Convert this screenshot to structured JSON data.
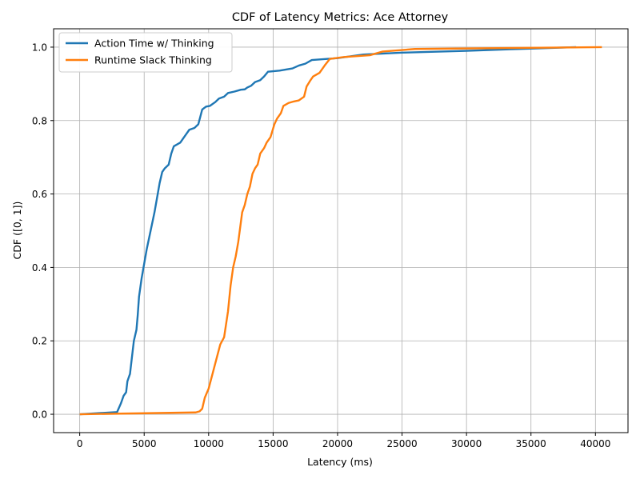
{
  "chart_data": {
    "type": "line",
    "title": "CDF of Latency Metrics: Ace Attorney",
    "xlabel": "Latency (ms)",
    "ylabel": "CDF ([0, 1])",
    "xlim": [
      -2025,
      42525
    ],
    "ylim": [
      -0.05,
      1.05
    ],
    "xticks": [
      0,
      5000,
      10000,
      15000,
      20000,
      25000,
      30000,
      35000,
      40000
    ],
    "yticks": [
      0.0,
      0.2,
      0.4,
      0.6,
      0.8,
      1.0
    ],
    "xtick_labels": [
      "0",
      "5000",
      "10000",
      "15000",
      "20000",
      "25000",
      "30000",
      "35000",
      "40000"
    ],
    "ytick_labels": [
      "0.0",
      "0.2",
      "0.4",
      "0.6",
      "0.8",
      "1.0"
    ],
    "grid": true,
    "legend_position": "upper-left",
    "series": [
      {
        "name": "Action Time w/ Thinking",
        "color": "#1f77b4",
        "points": [
          [
            0,
            0.0
          ],
          [
            2900,
            0.006
          ],
          [
            3200,
            0.03
          ],
          [
            3400,
            0.05
          ],
          [
            3600,
            0.06
          ],
          [
            3700,
            0.09
          ],
          [
            3800,
            0.1
          ],
          [
            3900,
            0.11
          ],
          [
            4000,
            0.14
          ],
          [
            4100,
            0.17
          ],
          [
            4200,
            0.2
          ],
          [
            4400,
            0.23
          ],
          [
            4500,
            0.27
          ],
          [
            4600,
            0.32
          ],
          [
            4800,
            0.37
          ],
          [
            5000,
            0.41
          ],
          [
            5200,
            0.45
          ],
          [
            5500,
            0.5
          ],
          [
            5800,
            0.55
          ],
          [
            6000,
            0.59
          ],
          [
            6200,
            0.63
          ],
          [
            6400,
            0.66
          ],
          [
            6600,
            0.67
          ],
          [
            6900,
            0.68
          ],
          [
            7100,
            0.71
          ],
          [
            7300,
            0.73
          ],
          [
            7800,
            0.74
          ],
          [
            8000,
            0.75
          ],
          [
            8300,
            0.765
          ],
          [
            8500,
            0.775
          ],
          [
            8900,
            0.78
          ],
          [
            9200,
            0.79
          ],
          [
            9500,
            0.83
          ],
          [
            9800,
            0.838
          ],
          [
            10100,
            0.84
          ],
          [
            10500,
            0.85
          ],
          [
            10800,
            0.86
          ],
          [
            11200,
            0.865
          ],
          [
            11500,
            0.875
          ],
          [
            12000,
            0.879
          ],
          [
            12500,
            0.884
          ],
          [
            12800,
            0.885
          ],
          [
            13000,
            0.89
          ],
          [
            13300,
            0.895
          ],
          [
            13600,
            0.905
          ],
          [
            14000,
            0.91
          ],
          [
            14300,
            0.92
          ],
          [
            14600,
            0.933
          ],
          [
            15500,
            0.936
          ],
          [
            16500,
            0.942
          ],
          [
            17000,
            0.95
          ],
          [
            17500,
            0.955
          ],
          [
            18000,
            0.965
          ],
          [
            20000,
            0.97
          ],
          [
            21000,
            0.975
          ],
          [
            22000,
            0.98
          ],
          [
            25000,
            0.985
          ],
          [
            30000,
            0.99
          ],
          [
            34000,
            0.995
          ],
          [
            38500,
            1.0
          ]
        ]
      },
      {
        "name": "Runtime Slack Thinking",
        "color": "#ff7f0e",
        "points": [
          [
            0,
            0.0
          ],
          [
            9000,
            0.005
          ],
          [
            9300,
            0.008
          ],
          [
            9500,
            0.015
          ],
          [
            9700,
            0.045
          ],
          [
            10000,
            0.07
          ],
          [
            10300,
            0.11
          ],
          [
            10600,
            0.15
          ],
          [
            10900,
            0.19
          ],
          [
            11200,
            0.21
          ],
          [
            11500,
            0.28
          ],
          [
            11700,
            0.35
          ],
          [
            11900,
            0.4
          ],
          [
            12100,
            0.43
          ],
          [
            12300,
            0.47
          ],
          [
            12600,
            0.55
          ],
          [
            12800,
            0.57
          ],
          [
            13000,
            0.6
          ],
          [
            13200,
            0.62
          ],
          [
            13400,
            0.655
          ],
          [
            13600,
            0.67
          ],
          [
            13800,
            0.68
          ],
          [
            14000,
            0.71
          ],
          [
            14300,
            0.725
          ],
          [
            14500,
            0.74
          ],
          [
            14800,
            0.755
          ],
          [
            15100,
            0.79
          ],
          [
            15300,
            0.805
          ],
          [
            15600,
            0.82
          ],
          [
            15800,
            0.84
          ],
          [
            16200,
            0.848
          ],
          [
            16600,
            0.852
          ],
          [
            17000,
            0.855
          ],
          [
            17400,
            0.865
          ],
          [
            17600,
            0.893
          ],
          [
            17900,
            0.91
          ],
          [
            18100,
            0.92
          ],
          [
            18600,
            0.93
          ],
          [
            19000,
            0.95
          ],
          [
            19400,
            0.968
          ],
          [
            20500,
            0.973
          ],
          [
            22500,
            0.978
          ],
          [
            23500,
            0.988
          ],
          [
            26000,
            0.995
          ],
          [
            40500,
            1.0
          ]
        ]
      }
    ]
  }
}
